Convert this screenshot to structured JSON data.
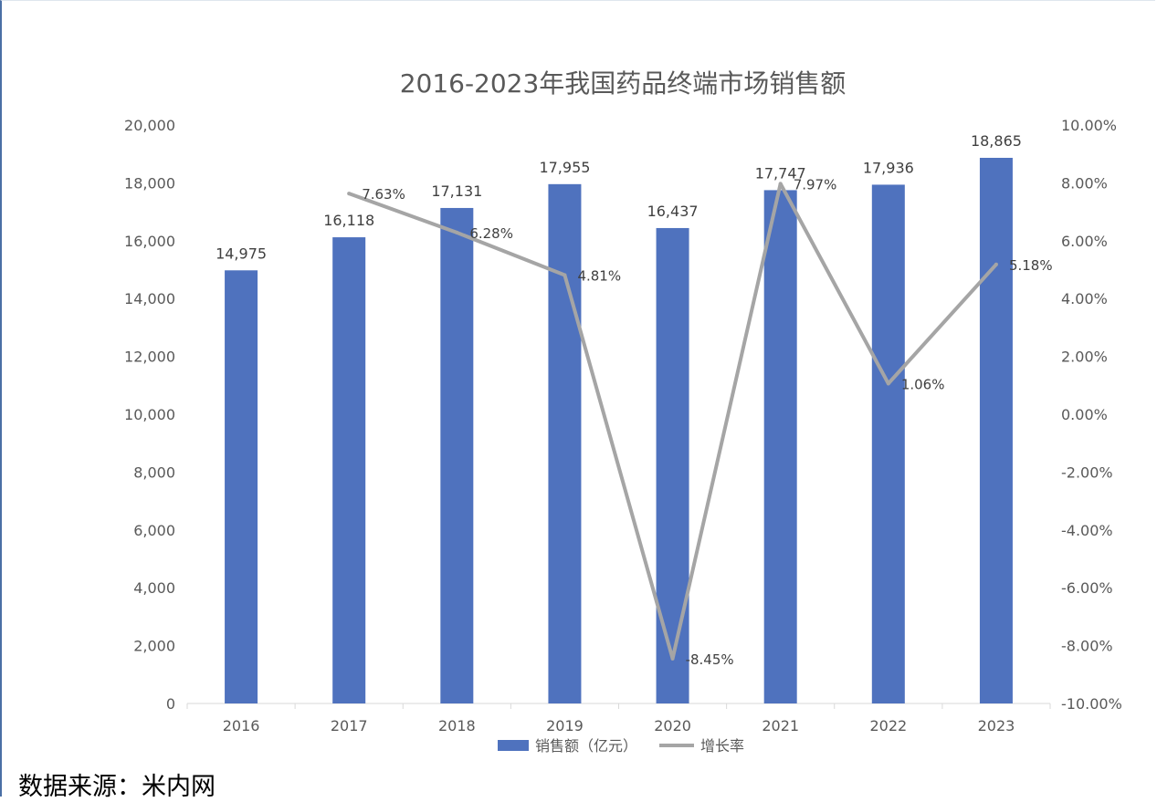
{
  "chart_data": {
    "type": "bar",
    "title": "2016-2023年我国药品终端市场销售额",
    "categories": [
      "2016",
      "2017",
      "2018",
      "2019",
      "2020",
      "2021",
      "2022",
      "2023"
    ],
    "series": [
      {
        "name": "销售额（亿元）",
        "type": "bar",
        "axis": "left",
        "color": "#4f72be",
        "values": [
          14975,
          16118,
          17131,
          17955,
          16437,
          17747,
          17936,
          18865
        ],
        "labels": [
          "14,975",
          "16,118",
          "17,131",
          "17,955",
          "16,437",
          "17,747",
          "17,936",
          "18,865"
        ]
      },
      {
        "name": "增长率",
        "type": "line",
        "axis": "right",
        "color": "#a5a5a5",
        "values": [
          null,
          7.63,
          6.28,
          4.81,
          -8.45,
          7.97,
          1.06,
          5.18
        ],
        "labels": [
          null,
          "7.63%",
          "6.28%",
          "4.81%",
          "-8.45%",
          "7.97%",
          "1.06%",
          "5.18%"
        ]
      }
    ],
    "y_left": {
      "lim": [
        0,
        20000
      ],
      "ticks": [
        "0",
        "2,000",
        "4,000",
        "6,000",
        "8,000",
        "10,000",
        "12,000",
        "14,000",
        "16,000",
        "18,000",
        "20,000"
      ]
    },
    "y_right": {
      "lim": [
        -10,
        10
      ],
      "ticks": [
        "-10.00%",
        "-8.00%",
        "-6.00%",
        "-4.00%",
        "-2.00%",
        "0.00%",
        "2.00%",
        "4.00%",
        "6.00%",
        "8.00%",
        "10.00%"
      ]
    },
    "legend": "bottom",
    "grid": false
  },
  "source_note": "数据来源：米内网"
}
